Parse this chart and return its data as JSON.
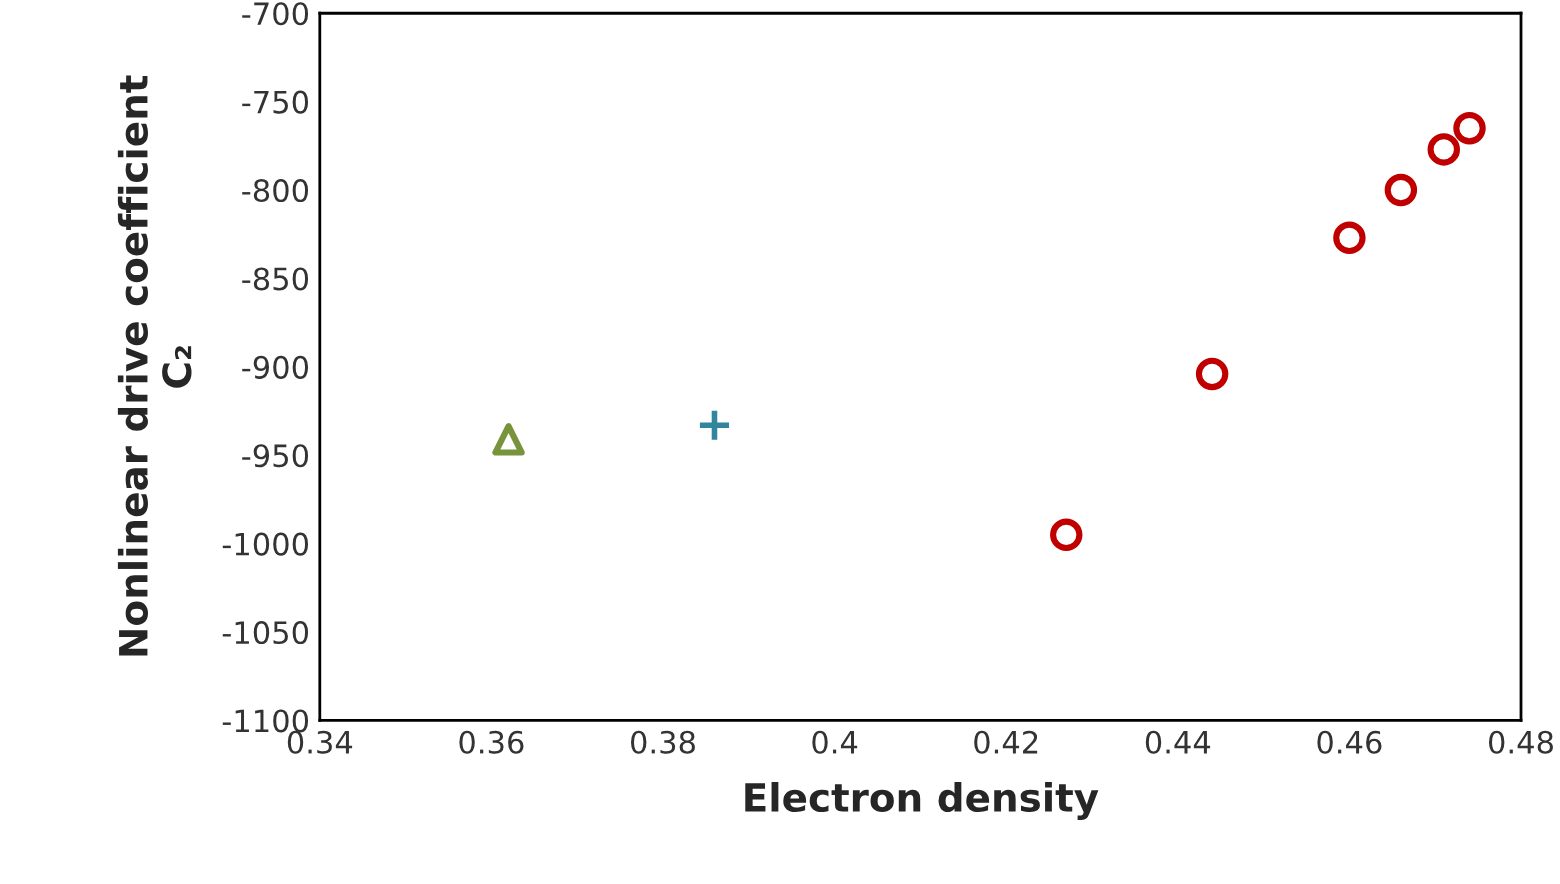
{
  "chart_data": {
    "type": "scatter",
    "xlabel": "Electron density",
    "ylabel": "Nonlinear drive coefficient\nC₂",
    "xlim": [
      0.34,
      0.48
    ],
    "xticks": [
      0.34,
      0.36,
      0.38,
      0.4,
      0.42,
      0.44,
      0.46,
      0.48
    ],
    "ylim": [
      -1100,
      -700
    ],
    "yticks": [
      -1100,
      -1050,
      -1000,
      -950,
      -900,
      -850,
      -800,
      -750,
      -700
    ],
    "grid": false,
    "series": [
      {
        "color": "#77933c",
        "marker": "triangle",
        "x": [
          0.362
        ],
        "values": [
          -941
        ]
      },
      {
        "color": "#31859c",
        "marker": "cross",
        "x": [
          0.386
        ],
        "values": [
          -933
        ]
      },
      {
        "color": "#c00000",
        "marker": "circle",
        "x": [
          0.427,
          0.444,
          0.46,
          0.466,
          0.471,
          0.474
        ],
        "values": [
          -995,
          -904,
          -827,
          -800,
          -777,
          -765
        ]
      }
    ]
  }
}
